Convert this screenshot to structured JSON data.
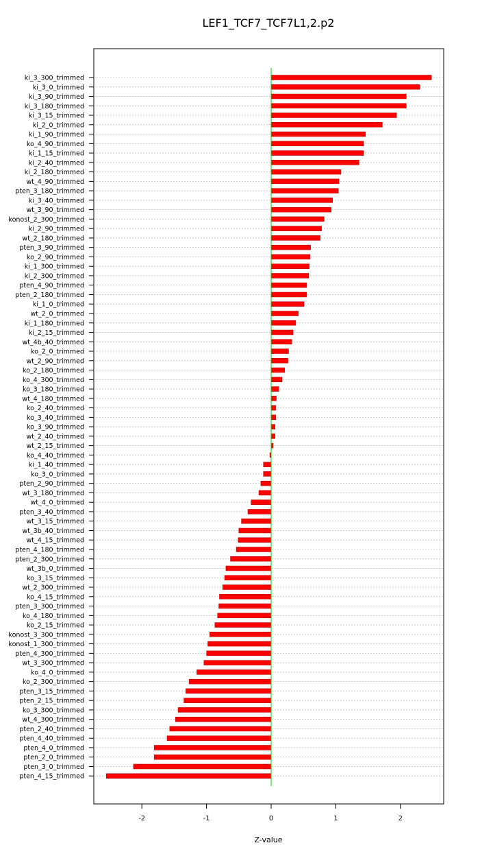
{
  "chart_data": {
    "type": "bar",
    "orientation": "horizontal",
    "title": "LEF1_TCF7_TCF7L1,2.p2",
    "xlabel": "Z-value",
    "ylabel": "",
    "xlim": [
      -2.75,
      2.7
    ],
    "x_ticks": [
      -2,
      -1,
      0,
      1,
      2
    ],
    "grid": "dotted horizontal lines per category",
    "bar_color": "#ff0000",
    "zero_line_color": "#00cc00",
    "categories": [
      "ki_3_300_trimmed",
      "ki_3_0_trimmed",
      "ki_3_90_trimmed",
      "ki_3_180_trimmed",
      "ki_3_15_trimmed",
      "ki_2_0_trimmed",
      "ki_1_90_trimmed",
      "ko_4_90_trimmed",
      "ki_1_15_trimmed",
      "ki_2_40_trimmed",
      "ki_2_180_trimmed",
      "wt_4_90_trimmed",
      "pten_3_180_trimmed",
      "ki_3_40_trimmed",
      "wt_3_90_trimmed",
      "konost_2_300_trimmed",
      "ki_2_90_trimmed",
      "wt_2_180_trimmed",
      "pten_3_90_trimmed",
      "ko_2_90_trimmed",
      "ki_1_300_trimmed",
      "ki_2_300_trimmed",
      "pten_4_90_trimmed",
      "pten_2_180_trimmed",
      "ki_1_0_trimmed",
      "wt_2_0_trimmed",
      "ki_1_180_trimmed",
      "ki_2_15_trimmed",
      "wt_4b_40_trimmed",
      "ko_2_0_trimmed",
      "wt_2_90_trimmed",
      "ko_2_180_trimmed",
      "ko_4_300_trimmed",
      "ko_3_180_trimmed",
      "wt_4_180_trimmed",
      "ko_2_40_trimmed",
      "ko_3_40_trimmed",
      "ko_3_90_trimmed",
      "wt_2_40_trimmed",
      "wt_2_15_trimmed",
      "ko_4_40_trimmed",
      "ki_1_40_trimmed",
      "ko_3_0_trimmed",
      "pten_2_90_trimmed",
      "wt_3_180_trimmed",
      "wt_4_0_trimmed",
      "pten_3_40_trimmed",
      "wt_3_15_trimmed",
      "wt_3b_40_trimmed",
      "wt_4_15_trimmed",
      "pten_4_180_trimmed",
      "pten_2_300_trimmed",
      "wt_3b_0_trimmed",
      "ko_3_15_trimmed",
      "wt_2_300_trimmed",
      "ko_4_15_trimmed",
      "pten_3_300_trimmed",
      "ko_4_180_trimmed",
      "ko_2_15_trimmed",
      "konost_3_300_trimmed",
      "konost_1_300_trimmed",
      "pten_4_300_trimmed",
      "wt_3_300_trimmed",
      "ko_4_0_trimmed",
      "ko_2_300_trimmed",
      "pten_3_15_trimmed",
      "pten_2_15_trimmed",
      "ko_3_300_trimmed",
      "wt_4_300_trimmed",
      "pten_2_40_trimmed",
      "pten_4_40_trimmed",
      "pten_4_0_trimmed",
      "pten_2_0_trimmed",
      "pten_3_0_trimmed",
      "pten_4_15_trimmed"
    ],
    "values": [
      2.48,
      2.3,
      2.09,
      2.09,
      1.94,
      1.72,
      1.46,
      1.43,
      1.43,
      1.36,
      1.08,
      1.05,
      1.04,
      0.95,
      0.93,
      0.82,
      0.78,
      0.76,
      0.61,
      0.6,
      0.59,
      0.58,
      0.55,
      0.55,
      0.51,
      0.42,
      0.38,
      0.34,
      0.32,
      0.27,
      0.26,
      0.21,
      0.17,
      0.12,
      0.08,
      0.07,
      0.07,
      0.06,
      0.06,
      0.03,
      -0.02,
      -0.12,
      -0.12,
      -0.16,
      -0.19,
      -0.31,
      -0.36,
      -0.46,
      -0.5,
      -0.51,
      -0.54,
      -0.63,
      -0.7,
      -0.72,
      -0.75,
      -0.8,
      -0.81,
      -0.83,
      -0.87,
      -0.95,
      -0.98,
      -1.0,
      -1.04,
      -1.15,
      -1.27,
      -1.32,
      -1.35,
      -1.44,
      -1.48,
      -1.57,
      -1.61,
      -1.81,
      -1.81,
      -2.13,
      -2.55
    ]
  }
}
